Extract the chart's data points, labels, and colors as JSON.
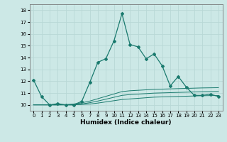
{
  "xlabel": "Humidex (Indice chaleur)",
  "xlim": [
    -0.5,
    23.5
  ],
  "ylim": [
    9.5,
    18.5
  ],
  "xticks": [
    0,
    1,
    2,
    3,
    4,
    5,
    6,
    7,
    8,
    9,
    10,
    11,
    12,
    13,
    14,
    15,
    16,
    17,
    18,
    19,
    20,
    21,
    22,
    23
  ],
  "yticks": [
    10,
    11,
    12,
    13,
    14,
    15,
    16,
    17,
    18
  ],
  "background_color": "#cce8e6",
  "grid_color": "#b8d8d6",
  "line_color": "#1a7a6e",
  "main_x": [
    0,
    1,
    2,
    3,
    4,
    5,
    6,
    7,
    8,
    9,
    10,
    11,
    12,
    13,
    14,
    15,
    16,
    17,
    18,
    19,
    20,
    21,
    22,
    23
  ],
  "main_y": [
    12.1,
    10.7,
    10.0,
    10.1,
    10.0,
    10.0,
    10.3,
    11.9,
    13.6,
    13.9,
    15.4,
    17.7,
    15.1,
    14.9,
    13.9,
    14.3,
    13.3,
    11.6,
    12.4,
    11.5,
    10.8,
    10.8,
    10.9,
    10.7
  ],
  "flat1_x": [
    0,
    1,
    2,
    3,
    4,
    5,
    6,
    7,
    8,
    9,
    10,
    11,
    12,
    13,
    14,
    15,
    16,
    17,
    18,
    19,
    20,
    21,
    22,
    23
  ],
  "flat1_y": [
    10.0,
    10.0,
    10.0,
    10.0,
    10.0,
    10.0,
    10.03,
    10.07,
    10.15,
    10.25,
    10.35,
    10.45,
    10.5,
    10.55,
    10.6,
    10.65,
    10.67,
    10.69,
    10.71,
    10.73,
    10.75,
    10.77,
    10.78,
    10.79
  ],
  "flat2_x": [
    0,
    1,
    2,
    3,
    4,
    5,
    6,
    7,
    8,
    9,
    10,
    11,
    12,
    13,
    14,
    15,
    16,
    17,
    18,
    19,
    20,
    21,
    22,
    23
  ],
  "flat2_y": [
    10.0,
    10.0,
    10.0,
    10.0,
    10.0,
    10.02,
    10.08,
    10.18,
    10.32,
    10.48,
    10.64,
    10.8,
    10.87,
    10.91,
    10.95,
    10.99,
    11.01,
    11.03,
    11.05,
    11.07,
    11.09,
    11.11,
    11.12,
    11.13
  ],
  "flat3_x": [
    0,
    1,
    2,
    3,
    4,
    5,
    6,
    7,
    8,
    9,
    10,
    11,
    12,
    13,
    14,
    15,
    16,
    17,
    18,
    19,
    20,
    21,
    22,
    23
  ],
  "flat3_y": [
    10.0,
    10.0,
    10.0,
    10.0,
    10.02,
    10.07,
    10.17,
    10.32,
    10.52,
    10.72,
    10.92,
    11.12,
    11.19,
    11.23,
    11.27,
    11.31,
    11.33,
    11.35,
    11.37,
    11.39,
    11.41,
    11.43,
    11.44,
    11.45
  ]
}
